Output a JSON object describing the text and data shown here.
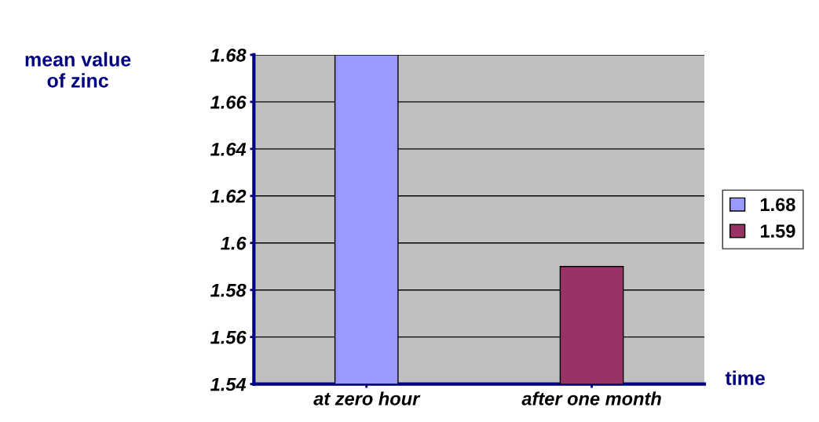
{
  "chart_data": {
    "type": "bar",
    "ylabel": "mean value\nof zinc",
    "xlabel": "time",
    "categories": [
      "at zero hour",
      "after one month"
    ],
    "series": [
      {
        "name": "1.68",
        "color": "#9999ff",
        "values": [
          1.68,
          null
        ]
      },
      {
        "name": "1.59",
        "color": "#993366",
        "values": [
          null,
          1.59
        ]
      }
    ],
    "ylim": [
      1.54,
      1.68
    ],
    "yticks": [
      1.54,
      1.56,
      1.58,
      1.6,
      1.62,
      1.64,
      1.66,
      1.68
    ],
    "grid": "y",
    "legend": "right"
  }
}
